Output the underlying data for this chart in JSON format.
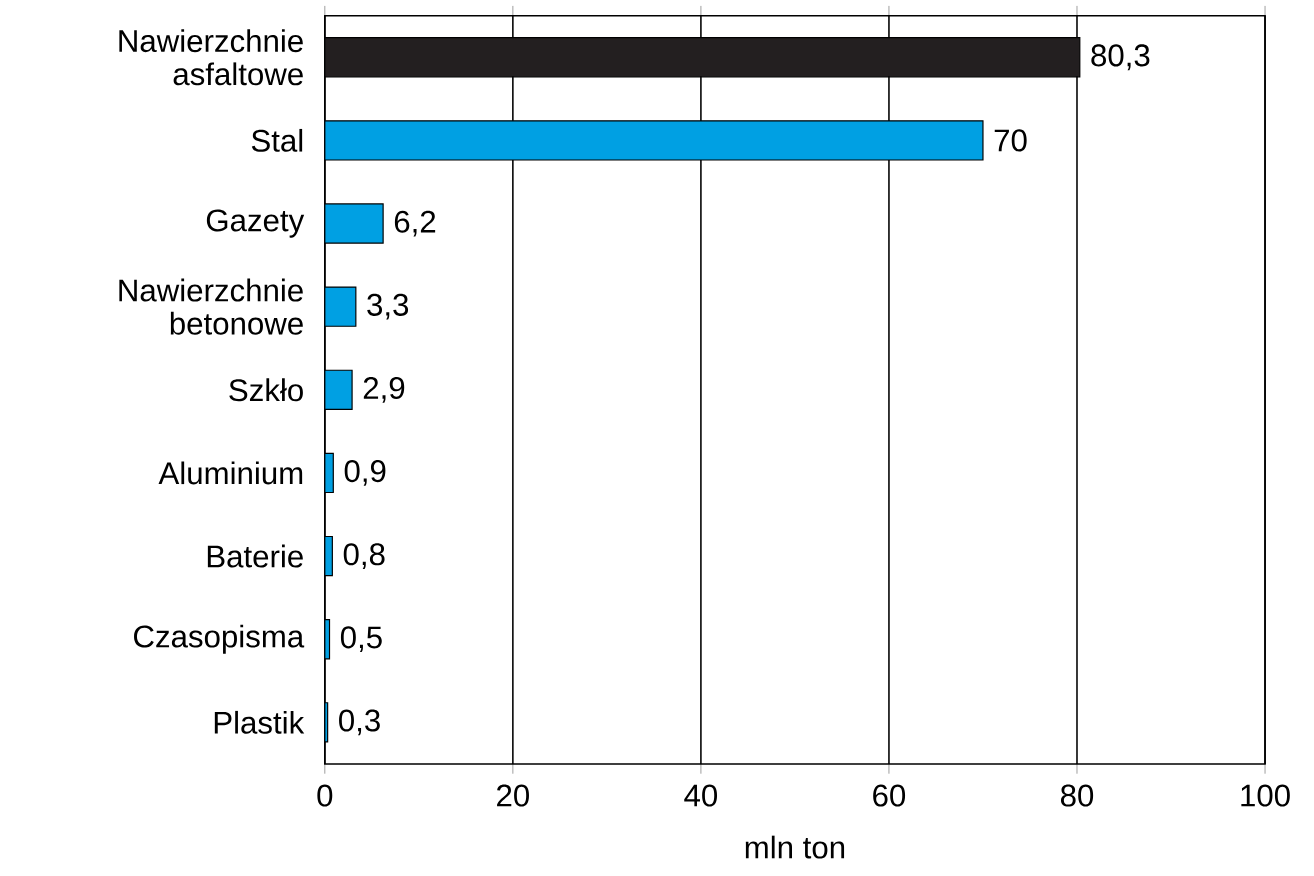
{
  "chart_data": {
    "type": "bar",
    "orientation": "horizontal",
    "xlabel": "mln ton",
    "categories": [
      "Nawierzchnie asfaltowe",
      "Stal",
      "Gazety",
      "Nawierzchnie betonowe",
      "Szkło",
      "Aluminium",
      "Baterie",
      "Czasopisma",
      "Plastik"
    ],
    "values": [
      80.3,
      70,
      6.2,
      3.3,
      2.9,
      0.9,
      0.8,
      0.5,
      0.3
    ],
    "value_labels": [
      "80,3",
      "70",
      "6,2",
      "3,3",
      "2,9",
      "0,9",
      "0,8",
      "0,5",
      "0,3"
    ],
    "colors": [
      "#231f20",
      "#00a0e3",
      "#00a0e3",
      "#00a0e3",
      "#00a0e3",
      "#00a0e3",
      "#00a0e3",
      "#00a0e3",
      "#00a0e3"
    ],
    "xlim": [
      0,
      100
    ],
    "xticks": [
      0,
      20,
      40,
      60,
      80,
      100
    ],
    "grid": "x"
  }
}
